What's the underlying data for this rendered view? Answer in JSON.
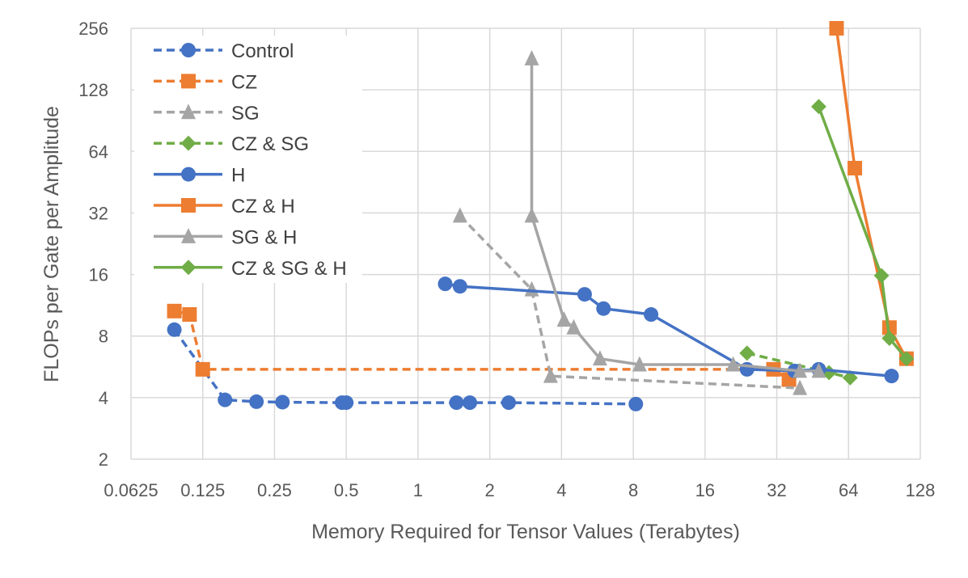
{
  "chart_data": {
    "type": "line",
    "xlabel": "Memory Required for Tensor Values (Terabytes)",
    "ylabel": "FLOPs per Gate per Amplitude",
    "xscale": "log2",
    "yscale": "log2",
    "xlim": [
      0.0625,
      128
    ],
    "ylim": [
      2,
      256
    ],
    "grid": true,
    "legend_position": "top-left",
    "x_ticks": [
      {
        "value": 0.0625,
        "label": "0.0625"
      },
      {
        "value": 0.125,
        "label": "0.125"
      },
      {
        "value": 0.25,
        "label": "0.25"
      },
      {
        "value": 0.5,
        "label": "0.5"
      },
      {
        "value": 1,
        "label": "1"
      },
      {
        "value": 2,
        "label": "2"
      },
      {
        "value": 4,
        "label": "4"
      },
      {
        "value": 8,
        "label": "8"
      },
      {
        "value": 16,
        "label": "16"
      },
      {
        "value": 32,
        "label": "32"
      },
      {
        "value": 64,
        "label": "64"
      },
      {
        "value": 128,
        "label": "128"
      }
    ],
    "y_ticks": [
      {
        "value": 2,
        "label": "2"
      },
      {
        "value": 4,
        "label": "4"
      },
      {
        "value": 8,
        "label": "8"
      },
      {
        "value": 16,
        "label": "16"
      },
      {
        "value": 32,
        "label": "32"
      },
      {
        "value": 64,
        "label": "64"
      },
      {
        "value": 128,
        "label": "128"
      },
      {
        "value": 256,
        "label": "256"
      }
    ],
    "series": [
      {
        "name": "Control",
        "color": "#4472C4",
        "dash": true,
        "marker": "circle",
        "x": [
          0.095,
          0.155,
          0.21,
          0.27,
          0.48,
          0.5,
          1.45,
          1.65,
          2.4,
          8.2
        ],
        "y": [
          8.6,
          3.9,
          3.82,
          3.8,
          3.78,
          3.78,
          3.78,
          3.78,
          3.78,
          3.72
        ]
      },
      {
        "name": "CZ",
        "color": "#ED7D31",
        "dash": true,
        "marker": "square",
        "x": [
          0.095,
          0.11,
          0.125,
          31,
          36
        ],
        "y": [
          10.6,
          10.2,
          5.5,
          5.5,
          4.9
        ]
      },
      {
        "name": "SG",
        "color": "#A5A5A5",
        "dash": true,
        "marker": "triangle",
        "x": [
          1.5,
          3.0,
          3.6,
          40
        ],
        "y": [
          31,
          13.5,
          5.1,
          4.45
        ]
      },
      {
        "name": "CZ & SG",
        "color": "#70AD47",
        "dash": true,
        "marker": "diamond",
        "x": [
          24,
          53,
          65
        ],
        "y": [
          6.6,
          5.3,
          5.0
        ]
      },
      {
        "name": "H",
        "color": "#4472C4",
        "dash": false,
        "marker": "circle",
        "x": [
          1.3,
          1.5,
          5.0,
          6.0,
          9.5,
          24,
          38,
          48,
          97
        ],
        "y": [
          14.4,
          14,
          12.8,
          10.9,
          10.2,
          5.5,
          5.4,
          5.5,
          5.1
        ]
      },
      {
        "name": "CZ & H",
        "color": "#ED7D31",
        "dash": false,
        "marker": "square",
        "x": [
          57,
          68,
          95,
          112
        ],
        "y": [
          256,
          53,
          8.8,
          6.2
        ]
      },
      {
        "name": "SG & H",
        "color": "#A5A5A5",
        "dash": false,
        "marker": "triangle",
        "x": [
          3.0,
          3.0,
          4.1,
          4.5,
          5.8,
          8.5,
          21,
          40,
          48
        ],
        "y": [
          182,
          31,
          9.6,
          8.8,
          6.2,
          5.8,
          5.8,
          5.4,
          5.4
        ]
      },
      {
        "name": "CZ & SG & H",
        "color": "#70AD47",
        "dash": false,
        "marker": "diamond",
        "x": [
          48,
          88,
          95,
          112
        ],
        "y": [
          106,
          15.8,
          7.8,
          6.2
        ]
      }
    ]
  }
}
